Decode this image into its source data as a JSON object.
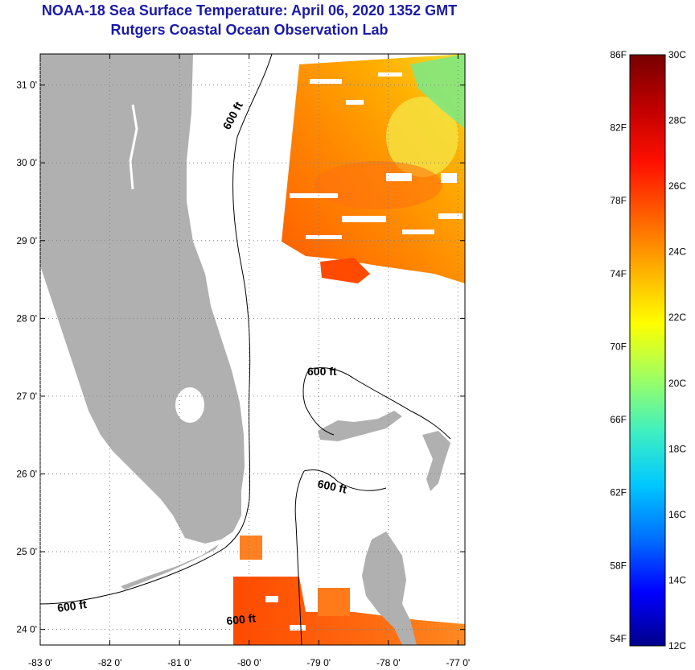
{
  "title": {
    "line1": "NOAA-18 Sea Surface Temperature:  April 06, 2020 1352 GMT",
    "line2": "Rutgers Coastal Ocean Observation Lab"
  },
  "colors": {
    "title": "#1a1aa8",
    "land": "#b0b0b0",
    "grid": "#808080"
  },
  "map": {
    "lon_range": [
      -83,
      -76.9
    ],
    "lat_range": [
      23.8,
      31.4
    ],
    "lat_ticks": [
      {
        "value": 31,
        "label": "31 0'"
      },
      {
        "value": 30,
        "label": "30 0'"
      },
      {
        "value": 29,
        "label": "29 0'"
      },
      {
        "value": 28,
        "label": "28 0'"
      },
      {
        "value": 27,
        "label": "27 0'"
      },
      {
        "value": 26,
        "label": "26 0'"
      },
      {
        "value": 25,
        "label": "25 0'"
      },
      {
        "value": 24,
        "label": "24 0'"
      }
    ],
    "lon_ticks": [
      {
        "value": -83,
        "label": "-83 0'"
      },
      {
        "value": -82,
        "label": "-82 0'"
      },
      {
        "value": -81,
        "label": "-81 0'"
      },
      {
        "value": -80,
        "label": "-80 0'"
      },
      {
        "value": -79,
        "label": "-79 0'"
      },
      {
        "value": -78,
        "label": "-78 0'"
      },
      {
        "value": -77,
        "label": "-77 0'"
      }
    ],
    "contour_labels": [
      "600 ft",
      "600 ft",
      "600 ft",
      "600 ft",
      "600 ft"
    ]
  },
  "colorbar": {
    "fahrenheit": [
      {
        "value": 86,
        "label": "86F"
      },
      {
        "value": 82,
        "label": "82F"
      },
      {
        "value": 78,
        "label": "78F"
      },
      {
        "value": 74,
        "label": "74F"
      },
      {
        "value": 70,
        "label": "70F"
      },
      {
        "value": 66,
        "label": "66F"
      },
      {
        "value": 62,
        "label": "62F"
      },
      {
        "value": 58,
        "label": "58F"
      },
      {
        "value": 54,
        "label": "54F"
      }
    ],
    "celsius": [
      {
        "value": 30,
        "label": "30C"
      },
      {
        "value": 28,
        "label": "28C"
      },
      {
        "value": 26,
        "label": "26C"
      },
      {
        "value": 24,
        "label": "24C"
      },
      {
        "value": 22,
        "label": "22C"
      },
      {
        "value": 20,
        "label": "20C"
      },
      {
        "value": 18,
        "label": "18C"
      },
      {
        "value": 16,
        "label": "16C"
      },
      {
        "value": 14,
        "label": "14C"
      },
      {
        "value": 12,
        "label": "12C"
      }
    ],
    "range_c": [
      12,
      30
    ],
    "stops": [
      "#00008c",
      "#0000ff",
      "#0070ff",
      "#00c8ff",
      "#40f0c0",
      "#a0ff60",
      "#ffff00",
      "#ffb000",
      "#ff6000",
      "#ff1000",
      "#c00000",
      "#780000"
    ]
  }
}
